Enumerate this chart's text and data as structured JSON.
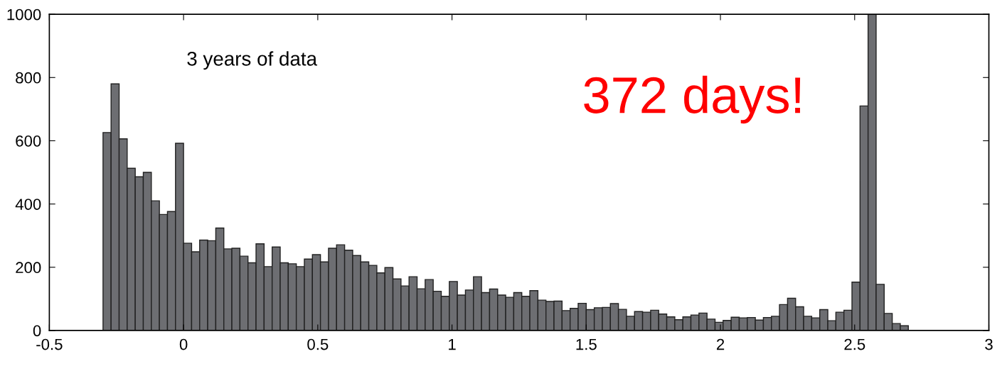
{
  "chart_data": {
    "type": "histogram",
    "bins": [
      -0.3,
      -0.27,
      -0.24,
      -0.21,
      -0.18,
      -0.15,
      -0.12,
      -0.09,
      -0.06,
      -0.03,
      0.0,
      0.03,
      0.06,
      0.09,
      0.12,
      0.15,
      0.18,
      0.21,
      0.24,
      0.27,
      0.3,
      0.33,
      0.36,
      0.39,
      0.42,
      0.45,
      0.48,
      0.51,
      0.54,
      0.57,
      0.6,
      0.63,
      0.66,
      0.69,
      0.72,
      0.75,
      0.78,
      0.81,
      0.84,
      0.87,
      0.9,
      0.93,
      0.96,
      0.99,
      1.02,
      1.05,
      1.08,
      1.11,
      1.14,
      1.17,
      1.2,
      1.23,
      1.26,
      1.29,
      1.32,
      1.35,
      1.38,
      1.41,
      1.44,
      1.47,
      1.5,
      1.53,
      1.56,
      1.59,
      1.62,
      1.65,
      1.68,
      1.71,
      1.74,
      1.77,
      1.8,
      1.83,
      1.86,
      1.89,
      1.92,
      1.95,
      1.98,
      2.01,
      2.04,
      2.07,
      2.1,
      2.13,
      2.16,
      2.19,
      2.22,
      2.25,
      2.28,
      2.31,
      2.34,
      2.37,
      2.4,
      2.43,
      2.46,
      2.49,
      2.52,
      2.55,
      2.58,
      2.61,
      2.64,
      2.67,
      2.7
    ],
    "values": [
      626,
      780,
      606,
      513,
      486,
      500,
      410,
      367,
      376,
      592,
      276,
      249,
      286,
      284,
      324,
      258,
      260,
      235,
      214,
      274,
      202,
      264,
      214,
      211,
      202,
      226,
      240,
      217,
      260,
      271,
      254,
      237,
      217,
      206,
      182,
      199,
      163,
      141,
      170,
      132,
      161,
      124,
      108,
      155,
      112,
      128,
      170,
      120,
      131,
      112,
      105,
      120,
      108,
      126,
      96,
      92,
      93,
      63,
      70,
      86,
      66,
      72,
      73,
      85,
      67,
      45,
      60,
      58,
      64,
      52,
      43,
      34,
      43,
      49,
      55,
      36,
      26,
      32,
      42,
      40,
      41,
      33,
      41,
      45,
      82,
      102,
      75,
      45,
      40,
      66,
      31,
      58,
      64,
      153,
      710,
      1000,
      146,
      54,
      22,
      15
    ],
    "color": "#6d6e72",
    "xlim": [
      -0.5,
      3
    ],
    "xticks": [
      -0.5,
      0,
      0.5,
      1,
      1.5,
      2,
      2.5,
      3
    ],
    "ylim": [
      0,
      1000
    ],
    "yticks": [
      0,
      200,
      400,
      600,
      800,
      1000
    ],
    "grid": false,
    "annotations": [
      "3 years of data",
      "372 days!"
    ]
  }
}
